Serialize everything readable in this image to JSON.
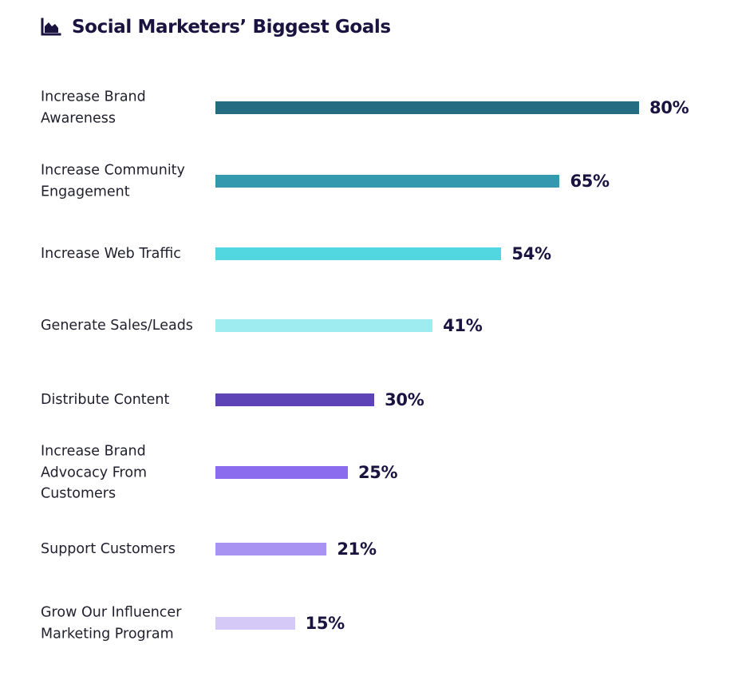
{
  "title": "Social Marketers’ Biggest Goals",
  "title_icon": "area-chart-icon",
  "colors": {
    "title": "#1a1340",
    "value_label": "#1a1340",
    "category_label": "#1f1f2e"
  },
  "chart_data": {
    "type": "bar",
    "orientation": "horizontal",
    "title": "Social Marketers’ Biggest Goals",
    "xlabel": "",
    "ylabel": "",
    "xlim": [
      0,
      80
    ],
    "grid": false,
    "legend": "none",
    "categories": [
      "Increase Brand Awareness",
      "Increase Community Engagement",
      "Increase Web Traffic",
      "Generate Sales/Leads",
      "Distribute Content",
      "Increase Brand Advocacy From Customers",
      "Support Customers",
      "Grow Our Influencer Marketing Program"
    ],
    "values": [
      80,
      65,
      54,
      41,
      30,
      25,
      21,
      15
    ],
    "value_labels": [
      "80%",
      "65%",
      "54%",
      "41%",
      "30%",
      "25%",
      "21%",
      "15%"
    ],
    "bar_colors": [
      "#236c82",
      "#3499ae",
      "#52d6e0",
      "#9eecef",
      "#5d43b5",
      "#8c6cee",
      "#a893f2",
      "#d5c9f7"
    ]
  }
}
